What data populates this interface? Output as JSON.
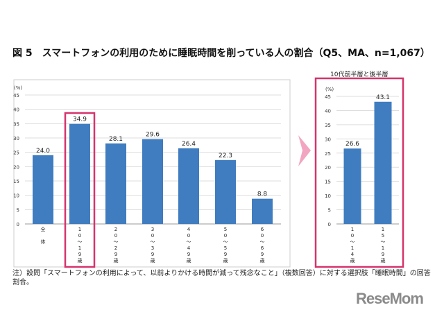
{
  "title": "図 5　スマートフォンの利用のために睡眠時間を削っている人の割合（Q5、MA、n=1,067）",
  "subtitle": "10代前半層と後半層",
  "note": "注）設問「スマートフォンの利用によって、以前よりかける時間が減って残念なこと」（複数回答）に対する選択肢「睡眠時間」の回答割合。",
  "logo": "ReseMom",
  "chart_data": [
    {
      "type": "bar",
      "unit_label": "(%)",
      "ylim": [
        0,
        45
      ],
      "yticks": [
        0,
        5,
        10,
        15,
        20,
        25,
        30,
        35,
        40,
        45
      ],
      "categories": [
        "全体",
        "10〜19歳",
        "20〜29歳",
        "30〜39歳",
        "40〜49歳",
        "50〜59歳",
        "60〜69歳"
      ],
      "cat_vertical": [
        [
          "全",
          "",
          "体"
        ],
        [
          "1",
          "0",
          "〜",
          "1",
          "9",
          "歳"
        ],
        [
          "2",
          "0",
          "〜",
          "2",
          "9",
          "歳"
        ],
        [
          "3",
          "0",
          "〜",
          "3",
          "9",
          "歳"
        ],
        [
          "4",
          "0",
          "〜",
          "4",
          "9",
          "歳"
        ],
        [
          "5",
          "0",
          "〜",
          "5",
          "9",
          "歳"
        ],
        [
          "6",
          "0",
          "〜",
          "6",
          "9",
          "歳"
        ]
      ],
      "values": [
        24.0,
        34.9,
        28.1,
        29.6,
        26.4,
        22.3,
        8.8
      ],
      "labels": [
        "24.0",
        "34.9",
        "28.1",
        "29.6",
        "26.4",
        "22.3",
        "8.8"
      ],
      "highlight": 1,
      "bar_color": "#3f7cc0"
    },
    {
      "type": "bar",
      "unit_label": "(%)",
      "ylim": [
        0,
        45
      ],
      "yticks": [
        0,
        5,
        10,
        15,
        20,
        25,
        30,
        35,
        40,
        45
      ],
      "categories": [
        "10〜14歳",
        "15〜19歳"
      ],
      "cat_vertical": [
        [
          "1",
          "0",
          "〜",
          "1",
          "4",
          "歳"
        ],
        [
          "1",
          "5",
          "〜",
          "1",
          "9",
          "歳"
        ]
      ],
      "values": [
        26.6,
        43.1
      ],
      "labels": [
        "26.6",
        "43.1"
      ],
      "bar_color": "#3f7cc0"
    }
  ],
  "highlight_color": "#d6336c"
}
